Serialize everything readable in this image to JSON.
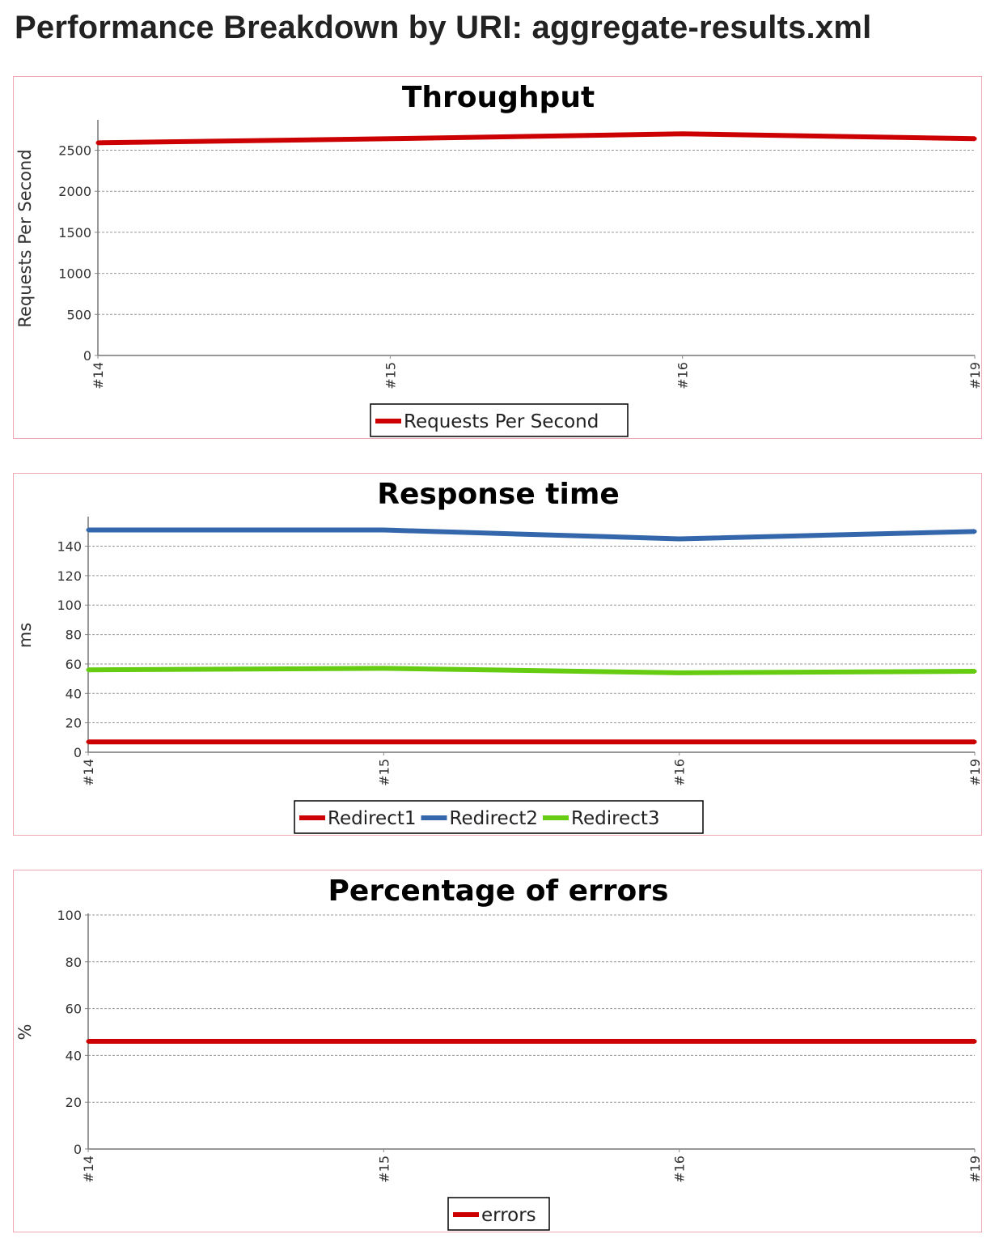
{
  "page": {
    "title": "Performance Breakdown by URI: aggregate-results.xml"
  },
  "chart_data": [
    {
      "type": "line",
      "title": "Throughput",
      "xlabel": "",
      "ylabel": "Requests Per Second",
      "categories": [
        "#14",
        "#15",
        "#16",
        "#19"
      ],
      "yticks": [
        0,
        500,
        1000,
        1500,
        2000,
        2500
      ],
      "ylim": [
        0,
        2850
      ],
      "grid": true,
      "legend_position": "bottom",
      "series": [
        {
          "name": "Requests Per Second",
          "color": "#cc0000",
          "values": [
            2590,
            2640,
            2700,
            2640
          ]
        }
      ]
    },
    {
      "type": "line",
      "title": "Response time",
      "xlabel": "",
      "ylabel": "ms",
      "categories": [
        "#14",
        "#15",
        "#16",
        "#19"
      ],
      "yticks": [
        0,
        20,
        40,
        60,
        80,
        100,
        120,
        140
      ],
      "ylim": [
        0,
        159
      ],
      "grid": true,
      "legend_position": "bottom",
      "series": [
        {
          "name": "Redirect1",
          "color": "#cc0000",
          "values": [
            7,
            7,
            7,
            7
          ]
        },
        {
          "name": "Redirect2",
          "color": "#3366aa",
          "values": [
            151,
            151,
            145,
            150
          ]
        },
        {
          "name": "Redirect3",
          "color": "#66cc11",
          "values": [
            56,
            57,
            54,
            55
          ]
        }
      ]
    },
    {
      "type": "line",
      "title": "Percentage of errors",
      "xlabel": "",
      "ylabel": "%",
      "categories": [
        "#14",
        "#15",
        "#16",
        "#19"
      ],
      "yticks": [
        0,
        20,
        40,
        60,
        80,
        100
      ],
      "ylim": [
        0,
        100
      ],
      "grid": true,
      "legend_position": "bottom",
      "series": [
        {
          "name": "errors",
          "color": "#cc0000",
          "values": [
            46,
            46,
            46,
            46
          ]
        }
      ]
    }
  ]
}
